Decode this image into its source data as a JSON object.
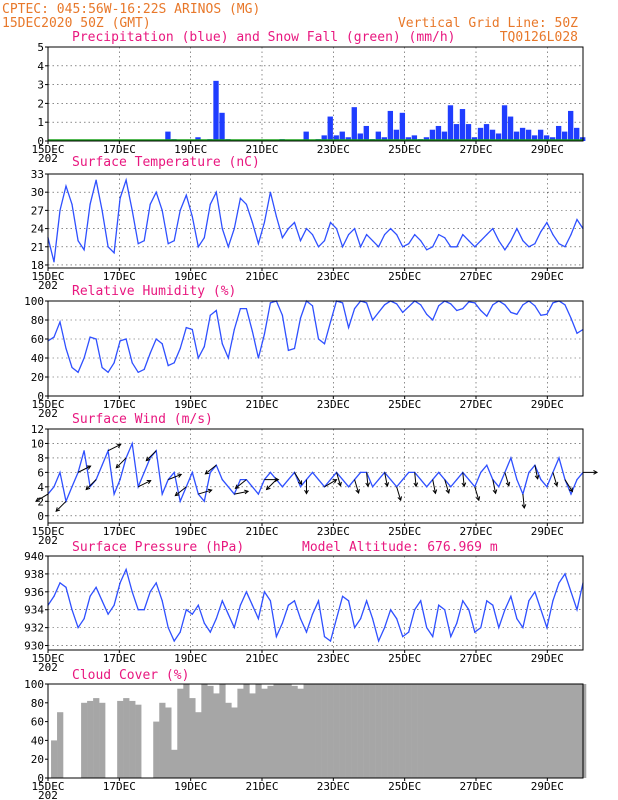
{
  "header": {
    "source_line": "CPTEC:  045:56W-16:22S  ARINOS (MG)",
    "date_line": "15DEC2020 50Z (GMT)",
    "grid_note": "Vertical Grid Line: 50Z",
    "model_code": "TQ0126L028"
  },
  "colors": {
    "header": "#e8782a",
    "panel_title": "#e8177f",
    "precip": "#1f3dff",
    "snow": "#18a018",
    "line": "#2f50ff",
    "wind_arrow": "#000000",
    "cloud": "#a6a6a6"
  },
  "x_axis": {
    "start": "15DEC",
    "end": "30DEC",
    "step_hours": 6,
    "tick_labels": [
      "15DEC",
      "17DEC",
      "19DEC",
      "21DEC",
      "23DEC",
      "25DEC",
      "27DEC",
      "29DEC"
    ],
    "cut_year_label": "202"
  },
  "chart_data": [
    {
      "id": "precip",
      "type": "bar",
      "title": "Precipitation (blue) and Snow Fall (green) (mm/h)",
      "ylim": [
        0,
        5
      ],
      "yticks": [
        0,
        1,
        2,
        3,
        4,
        5
      ],
      "grid": true,
      "series": [
        {
          "name": "Precipitation",
          "values": [
            0,
            0,
            0,
            0,
            0,
            0,
            0,
            0,
            0,
            0,
            0,
            0,
            0,
            0,
            0,
            0,
            0,
            0,
            0,
            0,
            0.5,
            0.1,
            0,
            0,
            0,
            0.2,
            0,
            0.1,
            3.2,
            1.5,
            0.1,
            0,
            0,
            0,
            0,
            0,
            0,
            0,
            0,
            0.1,
            0,
            0,
            0,
            0.5,
            0,
            0.1,
            0.3,
            1.3,
            0.3,
            0.5,
            0.2,
            1.8,
            0.4,
            0.8,
            0.1,
            0.5,
            0.2,
            1.6,
            0.6,
            1.5,
            0.2,
            0.3,
            0.1,
            0.2,
            0.6,
            0.8,
            0.5,
            1.9,
            0.9,
            1.7,
            0.9,
            0.2,
            0.7,
            0.9,
            0.6,
            0.4,
            1.9,
            1.3,
            0.5,
            0.7,
            0.6,
            0.3,
            0.6,
            0.3,
            0.2,
            0.8,
            0.5,
            1.6,
            0.7,
            0.2
          ]
        },
        {
          "name": "Snow Fall",
          "values": [
            0,
            0,
            0,
            0,
            0,
            0,
            0,
            0,
            0,
            0,
            0,
            0,
            0,
            0,
            0,
            0,
            0,
            0,
            0,
            0,
            0,
            0,
            0,
            0,
            0,
            0,
            0,
            0,
            0,
            0,
            0,
            0,
            0,
            0,
            0,
            0,
            0,
            0,
            0,
            0,
            0,
            0,
            0,
            0,
            0,
            0,
            0,
            0,
            0,
            0,
            0,
            0,
            0,
            0,
            0,
            0,
            0,
            0,
            0,
            0,
            0,
            0,
            0,
            0,
            0,
            0,
            0,
            0,
            0,
            0,
            0,
            0,
            0,
            0,
            0,
            0,
            0,
            0,
            0,
            0,
            0,
            0,
            0,
            0,
            0,
            0,
            0,
            0,
            0,
            0
          ]
        }
      ]
    },
    {
      "id": "temperature",
      "type": "line",
      "title": "Surface Temperature (nC)",
      "ylim": [
        17.5,
        33
      ],
      "yticks": [
        18,
        21,
        24,
        27,
        30,
        33
      ],
      "grid": true,
      "values": [
        22.5,
        18.5,
        27,
        31,
        28,
        22,
        20.5,
        28,
        32,
        27,
        21,
        20,
        29,
        32,
        27,
        21.5,
        22,
        28,
        30,
        27,
        21.5,
        22,
        27,
        29.5,
        26,
        21,
        22.5,
        28,
        30,
        24,
        21,
        24,
        29,
        28,
        25,
        21.5,
        25,
        30,
        26,
        22.5,
        24,
        25,
        22,
        24,
        23,
        21,
        22,
        25,
        24,
        21,
        23,
        24,
        21,
        23,
        22,
        21,
        23,
        24,
        23,
        21,
        21.5,
        23,
        22,
        20.5,
        21,
        23,
        22.5,
        21,
        21,
        23,
        22,
        21,
        22,
        23,
        24,
        22,
        20.5,
        22,
        24,
        22,
        21,
        21.5,
        23.5,
        25,
        23,
        21.5,
        21,
        23,
        25.5,
        24
      ]
    },
    {
      "id": "humidity",
      "type": "line",
      "title": "Relative Humidity (%)",
      "ylim": [
        0,
        100
      ],
      "yticks": [
        0,
        20,
        40,
        60,
        80,
        100
      ],
      "grid": true,
      "values": [
        58,
        62,
        78,
        50,
        30,
        25,
        40,
        62,
        60,
        30,
        25,
        35,
        58,
        60,
        35,
        25,
        28,
        45,
        60,
        55,
        32,
        35,
        50,
        72,
        70,
        40,
        52,
        85,
        90,
        55,
        40,
        70,
        92,
        92,
        68,
        40,
        65,
        98,
        100,
        85,
        48,
        50,
        82,
        100,
        95,
        60,
        55,
        78,
        100,
        98,
        72,
        92,
        100,
        98,
        80,
        88,
        96,
        100,
        97,
        88,
        94,
        100,
        96,
        86,
        80,
        95,
        100,
        97,
        90,
        92,
        99,
        98,
        90,
        84,
        96,
        100,
        96,
        88,
        86,
        96,
        100,
        95,
        85,
        86,
        98,
        100,
        96,
        82,
        66,
        70
      ]
    },
    {
      "id": "wind",
      "type": "line",
      "title": "Surface Wind (m/s)",
      "ylim": [
        -1,
        12
      ],
      "yticks": [
        0,
        2,
        4,
        6,
        8,
        10,
        12
      ],
      "grid": true,
      "values": [
        3,
        4,
        6,
        2,
        4,
        6,
        9,
        4,
        5,
        7,
        9,
        3,
        5,
        8,
        10,
        4,
        6,
        8,
        9,
        3,
        5,
        6,
        2,
        4,
        6,
        3,
        2,
        6,
        7,
        5,
        4,
        3,
        5,
        5,
        4,
        3,
        5,
        6,
        5,
        4,
        5,
        6,
        4,
        5,
        6,
        5,
        4,
        5,
        6,
        5,
        4,
        5,
        6,
        6,
        4,
        5,
        6,
        5,
        4,
        5,
        6,
        6,
        5,
        4,
        5,
        6,
        5,
        4,
        5,
        6,
        5,
        4,
        6,
        7,
        5,
        4,
        6,
        8,
        5,
        3,
        6,
        7,
        5,
        4,
        6,
        8,
        5,
        3,
        5,
        6
      ],
      "arrows": [
        [
          -1,
          -0.6
        ],
        [
          -1,
          -1
        ],
        [
          1,
          0.5
        ],
        [
          -1,
          -1
        ],
        [
          1,
          0.5
        ],
        [
          -1,
          -1
        ],
        [
          1,
          0.5
        ],
        [
          -1,
          -1
        ],
        [
          1,
          0.4
        ],
        [
          -1,
          -0.8
        ],
        [
          1,
          0.3
        ],
        [
          -1,
          -0.8
        ],
        [
          1,
          0.2
        ],
        [
          -1,
          -0.8
        ],
        [
          1,
          0
        ],
        [
          -1,
          -1
        ],
        [
          0.6,
          -1
        ],
        [
          0,
          -1
        ],
        [
          1,
          0.6
        ],
        [
          0.3,
          -1
        ],
        [
          0.3,
          -1
        ],
        [
          0.1,
          -1
        ],
        [
          0.2,
          -1
        ],
        [
          0.3,
          -1
        ],
        [
          0.1,
          -1
        ],
        [
          0.2,
          -1
        ],
        [
          0.3,
          -1
        ],
        [
          0.1,
          -1
        ],
        [
          0.3,
          -1
        ],
        [
          0.2,
          -1
        ],
        [
          0.3,
          -1
        ],
        [
          0.1,
          -1
        ],
        [
          0.2,
          -1
        ],
        [
          0.3,
          -1
        ],
        [
          0.5,
          -0.8
        ],
        [
          1,
          0
        ]
      ]
    },
    {
      "id": "pressure",
      "type": "line",
      "title": "Surface Pressure (hPa)",
      "subtitle": "Model Altitude: 676.969 m",
      "ylim": [
        929.5,
        940
      ],
      "yticks": [
        930,
        932,
        934,
        936,
        938,
        940
      ],
      "grid": true,
      "values": [
        934.5,
        935.5,
        937,
        936.5,
        934,
        932,
        933,
        935.5,
        936.5,
        935,
        933.5,
        934.5,
        937,
        938.5,
        936,
        934,
        934,
        936,
        937,
        935,
        932,
        930.5,
        931.5,
        934,
        933.5,
        934.5,
        932.5,
        931.5,
        933,
        935,
        933.5,
        932,
        934.5,
        936,
        934.5,
        933,
        936,
        935,
        931,
        932.5,
        934.5,
        935,
        933,
        931.5,
        933.5,
        935,
        931,
        930.5,
        933,
        935.5,
        935,
        932,
        933,
        935,
        933,
        930.5,
        932,
        934,
        933,
        931,
        931.5,
        934,
        935,
        932,
        931,
        934.5,
        934,
        931,
        932.5,
        935,
        934,
        931.5,
        932,
        935,
        934.5,
        932,
        934,
        935.5,
        933,
        932,
        935,
        936,
        934,
        932,
        935,
        937,
        938,
        936,
        934,
        937
      ]
    },
    {
      "id": "cloud",
      "type": "area",
      "title": "Cloud Cover (%)",
      "ylim": [
        0,
        100
      ],
      "yticks": [
        0,
        20,
        40,
        60,
        80,
        100
      ],
      "grid": false,
      "values": [
        0,
        40,
        70,
        0,
        0,
        0,
        80,
        82,
        85,
        80,
        0,
        0,
        82,
        85,
        82,
        78,
        0,
        0,
        60,
        80,
        75,
        30,
        95,
        100,
        85,
        70,
        100,
        98,
        90,
        100,
        80,
        75,
        95,
        100,
        90,
        100,
        95,
        98,
        100,
        100,
        100,
        98,
        95,
        100,
        100,
        100,
        100,
        100,
        100,
        100,
        100,
        100,
        100,
        100,
        100,
        100,
        100,
        100,
        100,
        100,
        100,
        100,
        100,
        100,
        100,
        100,
        100,
        100,
        100,
        100,
        100,
        100,
        100,
        100,
        100,
        100,
        100,
        100,
        100,
        100,
        100,
        100,
        100,
        100,
        100,
        100,
        100,
        100,
        100,
        100
      ]
    }
  ]
}
